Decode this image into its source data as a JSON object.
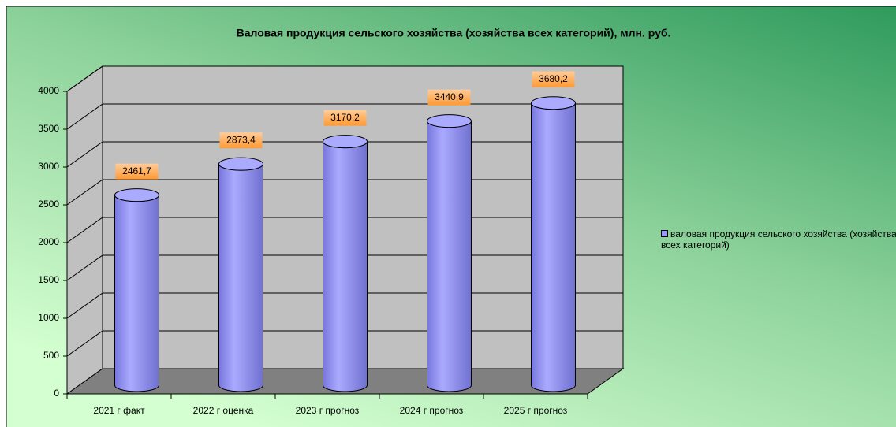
{
  "chart_data": {
    "type": "bar3d",
    "title": "Валовая продукция сельского хозяйства (хозяйства всех категорий), млн. руб.",
    "categories": [
      "2021 г факт",
      "2022 г оценка",
      "2023 г прогноз",
      "2024 г прогноз",
      "2025 г прогноз"
    ],
    "series": [
      {
        "name": "валовая продукция сельского хозяйства (хозяйства всех категорий)",
        "color": "#9999ff",
        "values": [
          2461.7,
          2873.4,
          3170.2,
          3440.9,
          3680.2
        ],
        "value_labels": [
          "2461,7",
          "2873,4",
          "3170,2",
          "3440,9",
          "3680,2"
        ]
      }
    ],
    "ylim": [
      0,
      4000
    ],
    "yticks": [
      0,
      500,
      1000,
      1500,
      2000,
      2500,
      3000,
      3500,
      4000
    ],
    "grid": true
  }
}
